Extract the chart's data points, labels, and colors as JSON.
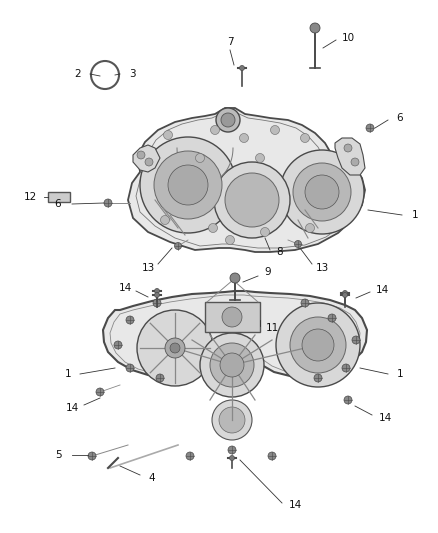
{
  "bg_color": "#ffffff",
  "line_color": "#4a4a4a",
  "fill_color": "#d8d8d8",
  "fill_dark": "#b8b8b8",
  "fill_light": "#e8e8e8",
  "label_color": "#111111",
  "fig_width": 4.38,
  "fig_height": 5.33,
  "dpi": 100
}
